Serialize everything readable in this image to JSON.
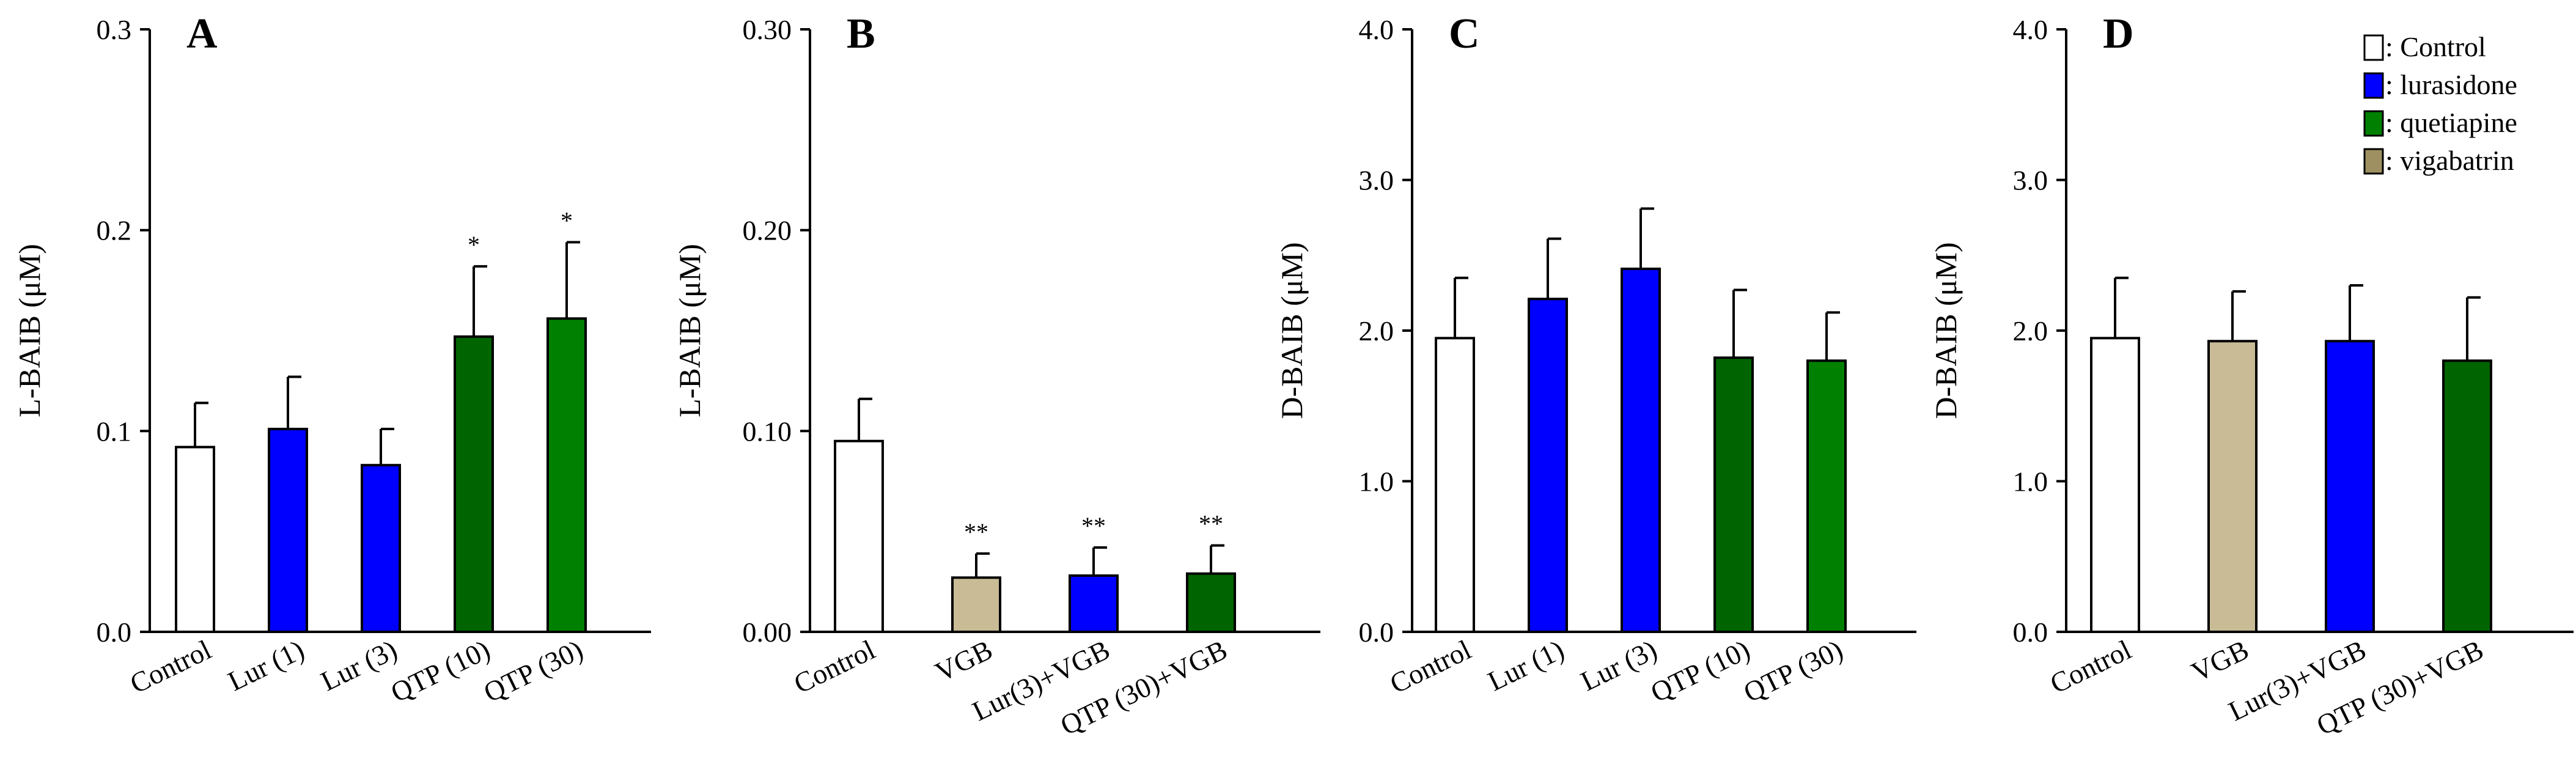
{
  "chart_data": [
    {
      "type": "bar",
      "panel": "A",
      "ylabel": "L-BAIB (μM)",
      "ylim": [
        0,
        0.3
      ],
      "yticks": [
        "0.0",
        "0.1",
        "0.2",
        "0.3"
      ],
      "categories": [
        "Control",
        "Lur (1)",
        "Lur (3)",
        "QTP (10)",
        "QTP (30)"
      ],
      "values": [
        0.092,
        0.101,
        0.083,
        0.147,
        0.156
      ],
      "errors": [
        0.022,
        0.026,
        0.018,
        0.035,
        0.038
      ],
      "colors": [
        "#ffffff",
        "#0000ff",
        "#0000ff",
        "#006400",
        "#008000"
      ],
      "significance": [
        "",
        "",
        "",
        "*",
        "*"
      ]
    },
    {
      "type": "bar",
      "panel": "B",
      "ylabel": "L-BAIB (μM)",
      "ylim": [
        0,
        0.3
      ],
      "yticks": [
        "0.00",
        "0.10",
        "0.20",
        "0.30"
      ],
      "categories": [
        "Control",
        "VGB",
        "Lur(3)+VGB",
        "QTP (30)+VGB"
      ],
      "values": [
        0.095,
        0.027,
        0.028,
        0.029
      ],
      "errors": [
        0.021,
        0.012,
        0.014,
        0.014
      ],
      "colors": [
        "#ffffff",
        "#c8bb96",
        "#0000ff",
        "#006400"
      ],
      "significance": [
        "",
        "**",
        "**",
        "**"
      ]
    },
    {
      "type": "bar",
      "panel": "C",
      "ylabel": "D-BAIB (μM)",
      "ylim": [
        0,
        4.0
      ],
      "yticks": [
        "0.0",
        "1.0",
        "2.0",
        "3.0",
        "4.0"
      ],
      "categories": [
        "Control",
        "Lur (1)",
        "Lur (3)",
        "QTP (10)",
        "QTP (30)"
      ],
      "values": [
        1.95,
        2.21,
        2.41,
        1.82,
        1.8
      ],
      "errors": [
        0.4,
        0.4,
        0.4,
        0.45,
        0.32
      ],
      "colors": [
        "#ffffff",
        "#0000ff",
        "#0000ff",
        "#006400",
        "#008000"
      ],
      "significance": [
        "",
        "",
        "",
        "",
        ""
      ]
    },
    {
      "type": "bar",
      "panel": "D",
      "ylabel": "D-BAIB (μM)",
      "ylim": [
        0,
        4.0
      ],
      "yticks": [
        "0.0",
        "1.0",
        "2.0",
        "3.0",
        "4.0"
      ],
      "categories": [
        "Control",
        "VGB",
        "Lur(3)+VGB",
        "QTP (30)+VGB"
      ],
      "values": [
        1.95,
        1.93,
        1.93,
        1.8
      ],
      "errors": [
        0.4,
        0.33,
        0.37,
        0.42
      ],
      "colors": [
        "#ffffff",
        "#c8bb96",
        "#0000ff",
        "#006400"
      ],
      "significance": [
        "",
        "",
        "",
        ""
      ]
    }
  ],
  "legend": {
    "placement": "top-right of panel D",
    "items": [
      {
        "label": ": Control",
        "color": "#ffffff"
      },
      {
        "label": ": lurasidone",
        "color": "#0000ff"
      },
      {
        "label": ": quetiapine",
        "color": "#008000"
      },
      {
        "label": ": vigabatrin",
        "color": "#9e9060"
      }
    ]
  }
}
